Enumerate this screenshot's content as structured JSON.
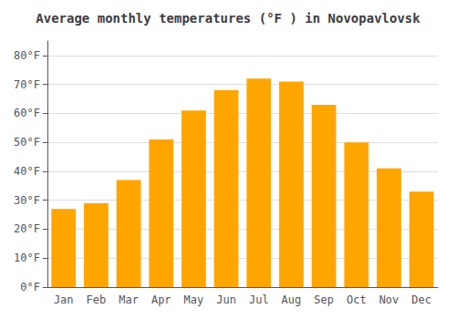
{
  "chart_data": {
    "type": "bar",
    "title": "Average monthly temperatures (°F ) in Novopavlovsk",
    "categories": [
      "Jan",
      "Feb",
      "Mar",
      "Apr",
      "May",
      "Jun",
      "Jul",
      "Aug",
      "Sep",
      "Oct",
      "Nov",
      "Dec"
    ],
    "values": [
      27,
      29,
      37,
      51,
      61,
      68,
      72,
      71,
      63,
      50,
      41,
      33
    ],
    "color": "#FFA500",
    "ylim": [
      0,
      85
    ],
    "yticks": [
      {
        "value": 0,
        "label": "0°F"
      },
      {
        "value": 10,
        "label": "10°F"
      },
      {
        "value": 20,
        "label": "20°F"
      },
      {
        "value": 30,
        "label": "30°F"
      },
      {
        "value": 40,
        "label": "40°F"
      },
      {
        "value": 50,
        "label": "50°F"
      },
      {
        "value": 60,
        "label": "60°F"
      },
      {
        "value": 70,
        "label": "70°F"
      },
      {
        "value": 80,
        "label": "80°F"
      }
    ],
    "grid": true
  }
}
